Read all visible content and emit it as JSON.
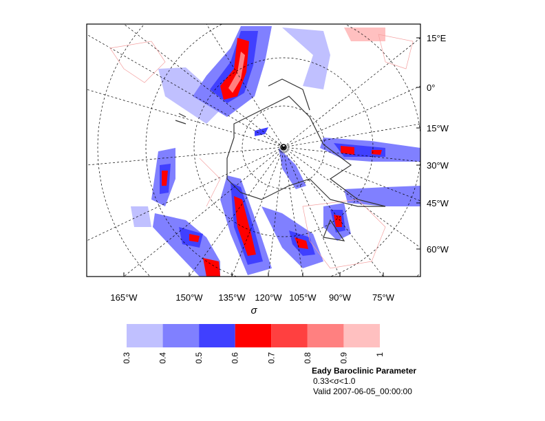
{
  "map": {
    "x_labels": [
      "165°W",
      "150°W",
      "135°W",
      "120°W",
      "105°W",
      "90°W",
      "75°W"
    ],
    "y_labels": [
      "15°E",
      "0°",
      "15°W",
      "30°W",
      "45°W",
      "60°W"
    ],
    "x_axis_label": "σ",
    "colorbar": {
      "levels": [
        0.3,
        0.4,
        0.5,
        0.6,
        0.7,
        0.8,
        0.9,
        1
      ],
      "colors": [
        "#c0c0ff",
        "#8080ff",
        "#4040ff",
        "#ff0000",
        "#ff4040",
        "#ff8080",
        "#ffc0c0"
      ]
    },
    "title": "Eady Baroclinic Parameter",
    "subtitle": "0.33<σ<1.0",
    "valid": "Valid 2007-06-05_00:00:00"
  }
}
